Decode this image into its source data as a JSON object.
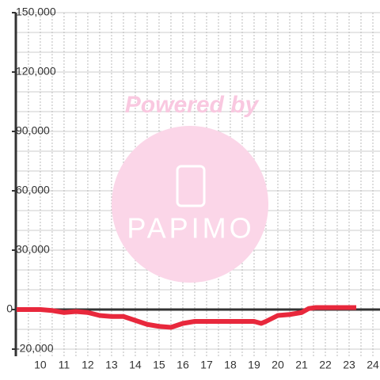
{
  "chart_data": {
    "type": "line",
    "watermark": [
      "Powered by",
      "PAPIMO"
    ],
    "x": [
      9,
      10,
      10.5,
      11,
      11.5,
      12,
      12.5,
      13,
      13.5,
      14,
      14.5,
      15,
      15.5,
      16,
      16.5,
      17,
      18,
      19,
      19.3,
      19.5,
      20,
      20.5,
      21,
      21.3,
      21.6,
      22,
      23.3
    ],
    "series": [
      {
        "color": "#e8283c",
        "values": [
          0,
          0,
          -500,
          -1500,
          -1000,
          -1500,
          -3000,
          -3500,
          -3500,
          -5500,
          -7500,
          -8500,
          -9000,
          -7000,
          -6000,
          -6000,
          -6000,
          -6000,
          -7000,
          -6000,
          -3000,
          -2500,
          -1500,
          500,
          1000,
          1000,
          1000
        ]
      }
    ],
    "xlim": [
      8.97,
      24.3
    ],
    "xticks": [
      10,
      11,
      12,
      13,
      14,
      15,
      16,
      17,
      18,
      19,
      20,
      21,
      22,
      23,
      24
    ],
    "ylim": [
      -23600,
      150000
    ],
    "yticks": [
      {
        "value": -20000,
        "label": "-20,000"
      },
      0,
      {
        "value": 30000,
        "label": "30,000"
      },
      {
        "value": 60000,
        "label": "60,000"
      },
      {
        "value": 90000,
        "label": "90,000"
      },
      {
        "value": 120000,
        "label": "120,000"
      },
      {
        "value": 150000,
        "label": "150,000"
      }
    ],
    "minor_yticks": [
      -10000,
      10000,
      20000,
      40000,
      50000,
      70000,
      80000,
      100000,
      110000,
      130000,
      140000
    ],
    "minor_xticks": [
      9.5,
      10.5,
      11.5,
      12.5,
      13.5,
      14.5,
      15.5,
      16.5,
      17.5,
      18.5,
      19.5,
      20.5,
      21.5,
      22.5,
      23.5
    ],
    "grid": true
  }
}
